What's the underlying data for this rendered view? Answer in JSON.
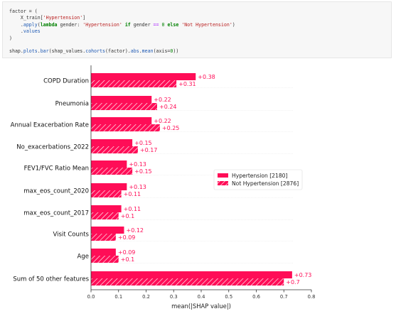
{
  "code": {
    "lines": [
      [
        {
          "t": "factor = ("
        }
      ],
      [
        {
          "t": "    X_train["
        },
        {
          "t": "'Hypertension'",
          "c": "str"
        },
        {
          "t": "]"
        }
      ],
      [
        {
          "t": "    ."
        },
        {
          "t": "apply",
          "c": "attr"
        },
        {
          "t": "("
        },
        {
          "t": "lambda",
          "c": "kw"
        },
        {
          "t": " gender: "
        },
        {
          "t": "'Hypertension'",
          "c": "str"
        },
        {
          "t": " "
        },
        {
          "t": "if",
          "c": "kw"
        },
        {
          "t": " gender "
        },
        {
          "t": "==",
          "c": "op"
        },
        {
          "t": " "
        },
        {
          "t": "0",
          "c": "num"
        },
        {
          "t": " "
        },
        {
          "t": "else",
          "c": "kw"
        },
        {
          "t": " "
        },
        {
          "t": "'Not Hypertension'",
          "c": "str"
        },
        {
          "t": ")"
        }
      ],
      [
        {
          "t": "    ."
        },
        {
          "t": "values",
          "c": "attr"
        }
      ],
      [
        {
          "t": ")"
        }
      ],
      [
        {
          "t": ""
        }
      ],
      [
        {
          "t": "shap."
        },
        {
          "t": "plots",
          "c": "attr"
        },
        {
          "t": "."
        },
        {
          "t": "bar",
          "c": "attr"
        },
        {
          "t": "(shap_values."
        },
        {
          "t": "cohorts",
          "c": "attr"
        },
        {
          "t": "(factor)."
        },
        {
          "t": "abs",
          "c": "attr"
        },
        {
          "t": "."
        },
        {
          "t": "mean",
          "c": "attr"
        },
        {
          "t": "(axis="
        },
        {
          "t": "0",
          "c": "num"
        },
        {
          "t": "))"
        }
      ]
    ]
  },
  "chart_data": {
    "type": "bar",
    "orientation": "horizontal",
    "categories": [
      "COPD Duration",
      "Pneumonia",
      "Annual Exacerbation Rate",
      "No_exacerbations_2022",
      "FEV1/FVC Ratio Mean",
      "max_eos_count_2020",
      "max_eos_count_2017",
      "Visit Counts",
      "Age",
      "Sum of 50 other features"
    ],
    "series": [
      {
        "name": "Hypertension [2180]",
        "values": [
          0.38,
          0.22,
          0.22,
          0.15,
          0.13,
          0.13,
          0.11,
          0.12,
          0.09,
          0.73
        ],
        "labels": [
          "+0.38",
          "+0.22",
          "+0.22",
          "+0.15",
          "+0.13",
          "+0.13",
          "+0.11",
          "+0.12",
          "+0.09",
          "+0.73"
        ],
        "pattern": "solid"
      },
      {
        "name": "Not Hypertension [2876]",
        "values": [
          0.31,
          0.24,
          0.25,
          0.17,
          0.15,
          0.11,
          0.1,
          0.09,
          0.1,
          0.7
        ],
        "labels": [
          "+0.31",
          "+0.24",
          "+0.25",
          "+0.17",
          "+0.15",
          "+0.11",
          "+0.1",
          "+0.09",
          "+0.1",
          "+0.7"
        ],
        "pattern": "hatched"
      }
    ],
    "xlabel": "mean(|SHAP value|)",
    "xticks": [
      "0.0",
      "0.1",
      "0.2",
      "0.3",
      "0.4",
      "0.5",
      "0.6",
      "0.7",
      "0.8"
    ],
    "xlim": [
      0,
      0.8
    ],
    "legend_position": "center-right",
    "grid": false,
    "colors": {
      "bar": "#ff0d57",
      "label": "#ff0d57",
      "axis": "#333333"
    }
  }
}
